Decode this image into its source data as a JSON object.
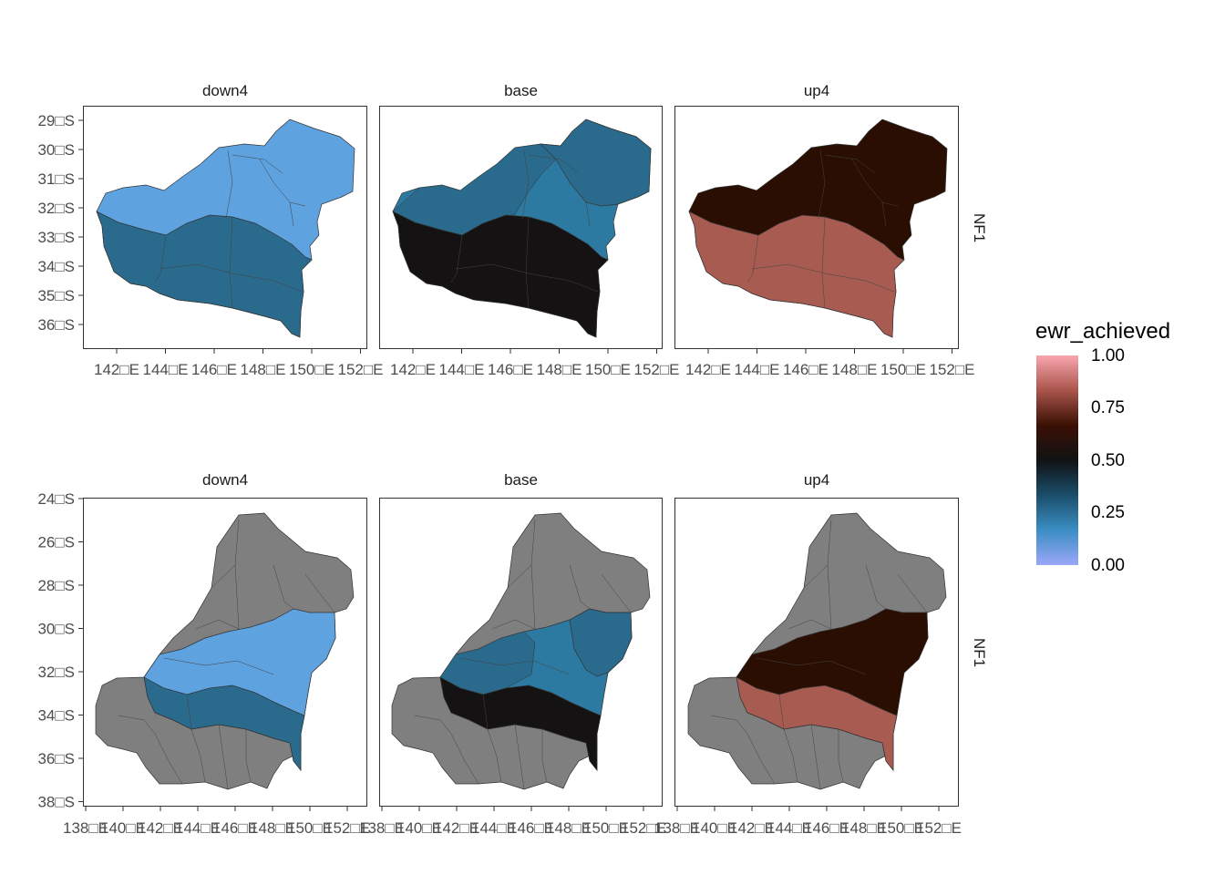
{
  "legend": {
    "title": "ewr_achieved",
    "breaks": [
      "1.00",
      "0.75",
      "0.50",
      "0.25",
      "0.00"
    ],
    "gradient": [
      "#f9a5ae",
      "#a9544a",
      "#3b1004",
      "#111214",
      "#1a4e6b",
      "#3b8ec4",
      "#9ba7f9"
    ]
  },
  "row_label": "NF1",
  "scale_colors": {
    "down4_upper": "#5ea2e0",
    "down4_lower": "#2a6a8c",
    "base_upper_east": "#2a6a8c",
    "base_upper_mid": "#2c7aa2",
    "base_lower": "#141213",
    "up4_upper": "#2a0e02",
    "up4_lower": "#a85b50",
    "outside": "#7f7f7f"
  },
  "top_row": {
    "panels": [
      "down4",
      "base",
      "up4"
    ],
    "y_ticks": [
      "29□S",
      "30□S",
      "31□S",
      "32□S",
      "33□S",
      "34□S",
      "35□S",
      "36□S"
    ],
    "x_ticks": [
      "142□E",
      "144□E",
      "146□E",
      "148□E",
      "150□E",
      "152□E"
    ]
  },
  "bottom_row": {
    "panels": [
      "down4",
      "base",
      "up4"
    ],
    "y_ticks": [
      "24□S",
      "26□S",
      "28□S",
      "30□S",
      "32□S",
      "34□S",
      "36□S",
      "38□S"
    ],
    "x_ticks": [
      "138□E",
      "140□E",
      "142□E",
      "144□E",
      "146□E",
      "148□E",
      "150□E",
      "152□E"
    ]
  }
}
